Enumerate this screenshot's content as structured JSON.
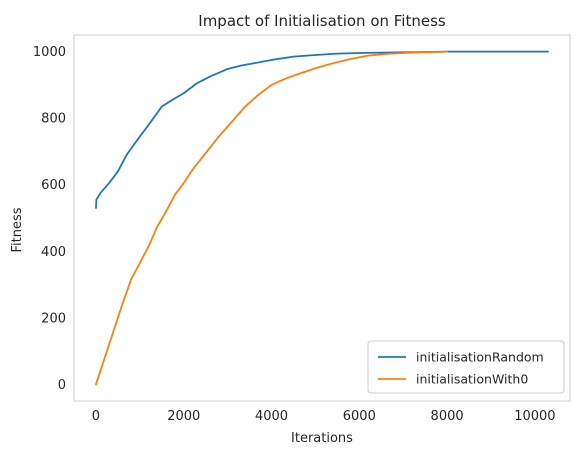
{
  "chart_data": {
    "type": "line",
    "title": "Impact of Initialisation on Fitness",
    "xlabel": "Iterations",
    "ylabel": "Fitness",
    "xlim": [
      -500,
      10800
    ],
    "ylim": [
      -50,
      1050
    ],
    "xticks": [
      0,
      2000,
      4000,
      6000,
      8000,
      10000
    ],
    "yticks": [
      0,
      200,
      400,
      600,
      800,
      1000
    ],
    "grid": true,
    "legend_position": "lower right",
    "series": [
      {
        "name": "initialisationRandom",
        "color": "#1f77b4",
        "x": [
          0,
          10,
          100,
          300,
          500,
          700,
          1000,
          1200,
          1500,
          1800,
          2000,
          2300,
          2600,
          3000,
          3300,
          3600,
          4000,
          4500,
          5000,
          5500,
          6000,
          6500,
          7000,
          7500,
          8000,
          9000,
          10000,
          10300
        ],
        "y": [
          530,
          555,
          575,
          605,
          640,
          690,
          745,
          780,
          835,
          860,
          875,
          905,
          925,
          948,
          958,
          965,
          975,
          985,
          990,
          994,
          996,
          997,
          998,
          999,
          1000,
          1000,
          1000,
          1000
        ]
      },
      {
        "name": "initialisationWith0",
        "color": "#ff7f0e",
        "x": [
          0,
          200,
          400,
          600,
          800,
          1000,
          1200,
          1400,
          1600,
          1800,
          2000,
          2200,
          2500,
          2800,
          3100,
          3400,
          3700,
          4000,
          4300,
          4600,
          5000,
          5400,
          5800,
          6200,
          6600,
          7000,
          7400,
          7800,
          8000
        ],
        "y": [
          0,
          80,
          160,
          240,
          315,
          365,
          415,
          475,
          520,
          570,
          605,
          645,
          695,
          745,
          790,
          835,
          870,
          900,
          918,
          932,
          950,
          965,
          978,
          988,
          993,
          996,
          998,
          999,
          1000
        ]
      }
    ]
  }
}
